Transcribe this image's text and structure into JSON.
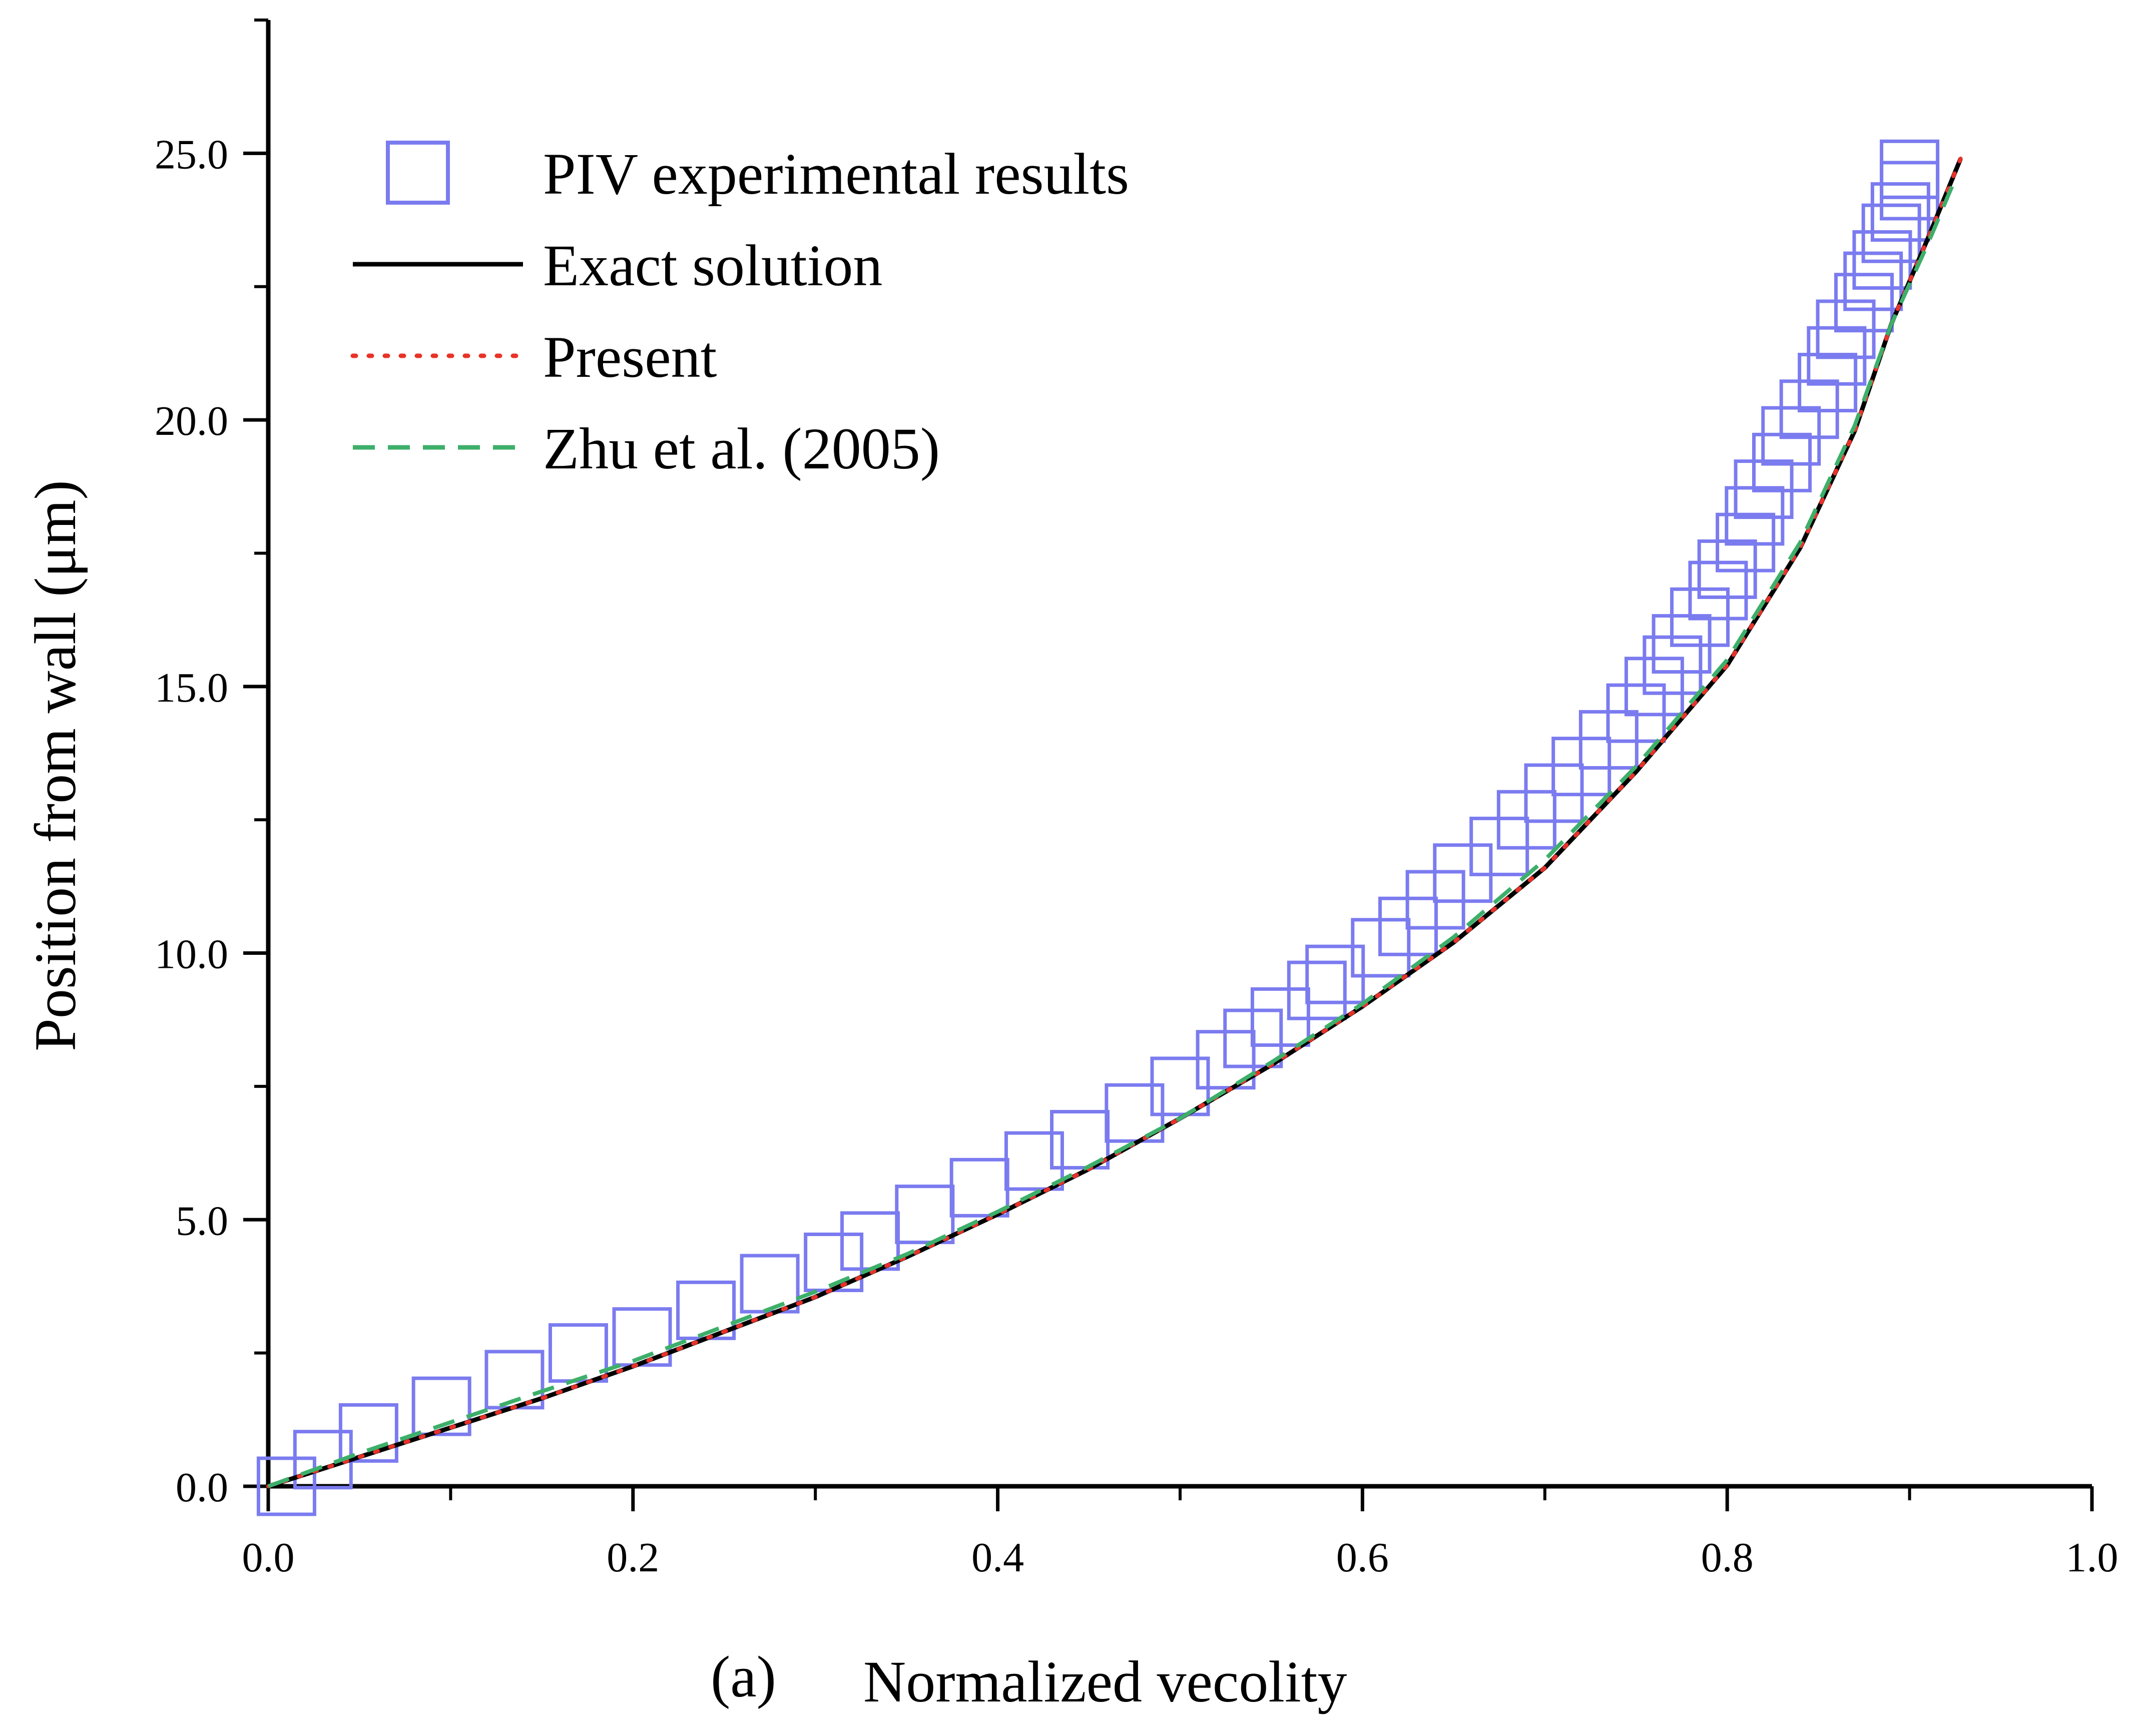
{
  "chart_data": {
    "type": "line",
    "panel_label": "(a)",
    "xlabel": "Normalized vecolity",
    "ylabel": "Position from wall (μm)",
    "xlim": [
      0.0,
      1.0
    ],
    "ylim": [
      0.0,
      27.5
    ],
    "x_ticks": [
      "0.0",
      "0.2",
      "0.4",
      "0.6",
      "0.8",
      "1.0"
    ],
    "y_ticks": [
      "0.0",
      "5.0",
      "10.0",
      "15.0",
      "20.0",
      "25.0"
    ],
    "grid": false,
    "legend_position": "top-left",
    "series": [
      {
        "name": "PIV experimental results",
        "style": "open-square",
        "color": "#7b7bf0",
        "points": [
          [
            0.01,
            0.0
          ],
          [
            0.03,
            0.5
          ],
          [
            0.055,
            1.0
          ],
          [
            0.095,
            1.5
          ],
          [
            0.135,
            2.0
          ],
          [
            0.17,
            2.5
          ],
          [
            0.205,
            2.8
          ],
          [
            0.24,
            3.3
          ],
          [
            0.275,
            3.8
          ],
          [
            0.31,
            4.2
          ],
          [
            0.33,
            4.6
          ],
          [
            0.36,
            5.1
          ],
          [
            0.39,
            5.6
          ],
          [
            0.42,
            6.1
          ],
          [
            0.445,
            6.5
          ],
          [
            0.475,
            7.0
          ],
          [
            0.5,
            7.5
          ],
          [
            0.525,
            8.0
          ],
          [
            0.54,
            8.4
          ],
          [
            0.555,
            8.8
          ],
          [
            0.575,
            9.3
          ],
          [
            0.585,
            9.6
          ],
          [
            0.61,
            10.1
          ],
          [
            0.625,
            10.5
          ],
          [
            0.64,
            11.0
          ],
          [
            0.655,
            11.5
          ],
          [
            0.675,
            12.0
          ],
          [
            0.69,
            12.5
          ],
          [
            0.705,
            13.0
          ],
          [
            0.72,
            13.5
          ],
          [
            0.735,
            14.0
          ],
          [
            0.75,
            14.5
          ],
          [
            0.76,
            15.0
          ],
          [
            0.77,
            15.4
          ],
          [
            0.775,
            15.8
          ],
          [
            0.785,
            16.3
          ],
          [
            0.795,
            16.8
          ],
          [
            0.8,
            17.2
          ],
          [
            0.81,
            17.7
          ],
          [
            0.815,
            18.2
          ],
          [
            0.82,
            18.7
          ],
          [
            0.83,
            19.2
          ],
          [
            0.835,
            19.7
          ],
          [
            0.845,
            20.2
          ],
          [
            0.855,
            20.7
          ],
          [
            0.86,
            21.2
          ],
          [
            0.865,
            21.7
          ],
          [
            0.875,
            22.2
          ],
          [
            0.88,
            22.6
          ],
          [
            0.885,
            23.0
          ],
          [
            0.89,
            23.5
          ],
          [
            0.895,
            23.9
          ],
          [
            0.9,
            24.3
          ],
          [
            0.9,
            24.7
          ]
        ]
      },
      {
        "name": "Exact solution",
        "style": "solid",
        "color": "#000000",
        "points": [
          [
            0.0,
            0.0
          ],
          [
            0.05,
            0.55
          ],
          [
            0.1,
            1.1
          ],
          [
            0.15,
            1.65
          ],
          [
            0.2,
            2.25
          ],
          [
            0.25,
            2.9
          ],
          [
            0.3,
            3.55
          ],
          [
            0.35,
            4.3
          ],
          [
            0.4,
            5.1
          ],
          [
            0.45,
            5.95
          ],
          [
            0.5,
            6.9
          ],
          [
            0.55,
            7.9
          ],
          [
            0.6,
            9.0
          ],
          [
            0.65,
            10.2
          ],
          [
            0.7,
            11.6
          ],
          [
            0.75,
            13.4
          ],
          [
            0.8,
            15.4
          ],
          [
            0.84,
            17.6
          ],
          [
            0.87,
            19.8
          ],
          [
            0.89,
            21.8
          ],
          [
            0.91,
            23.4
          ],
          [
            0.928,
            24.9
          ]
        ]
      },
      {
        "name": "Present",
        "style": "dotted",
        "color": "#e8322a",
        "points": [
          [
            0.0,
            0.0
          ],
          [
            0.05,
            0.55
          ],
          [
            0.1,
            1.1
          ],
          [
            0.15,
            1.65
          ],
          [
            0.2,
            2.25
          ],
          [
            0.25,
            2.9
          ],
          [
            0.3,
            3.55
          ],
          [
            0.35,
            4.3
          ],
          [
            0.4,
            5.1
          ],
          [
            0.45,
            5.95
          ],
          [
            0.5,
            6.9
          ],
          [
            0.55,
            7.9
          ],
          [
            0.6,
            9.0
          ],
          [
            0.65,
            10.2
          ],
          [
            0.7,
            11.6
          ],
          [
            0.75,
            13.4
          ],
          [
            0.8,
            15.4
          ],
          [
            0.84,
            17.6
          ],
          [
            0.87,
            19.8
          ],
          [
            0.89,
            21.8
          ],
          [
            0.91,
            23.4
          ],
          [
            0.928,
            24.9
          ]
        ]
      },
      {
        "name": "Zhu et al. (2005)",
        "style": "dashed",
        "color": "#3daf6a",
        "points": [
          [
            0.0,
            0.0
          ],
          [
            0.05,
            0.62
          ],
          [
            0.1,
            1.2
          ],
          [
            0.15,
            1.78
          ],
          [
            0.2,
            2.35
          ],
          [
            0.25,
            3.0
          ],
          [
            0.3,
            3.65
          ],
          [
            0.35,
            4.35
          ],
          [
            0.4,
            5.15
          ],
          [
            0.45,
            6.0
          ],
          [
            0.5,
            6.9
          ],
          [
            0.55,
            7.95
          ],
          [
            0.6,
            9.05
          ],
          [
            0.65,
            10.3
          ],
          [
            0.7,
            11.75
          ],
          [
            0.75,
            13.5
          ],
          [
            0.8,
            15.5
          ],
          [
            0.84,
            17.7
          ],
          [
            0.87,
            19.9
          ],
          [
            0.89,
            21.8
          ],
          [
            0.91,
            23.3
          ],
          [
            0.926,
            24.6
          ]
        ]
      }
    ]
  }
}
